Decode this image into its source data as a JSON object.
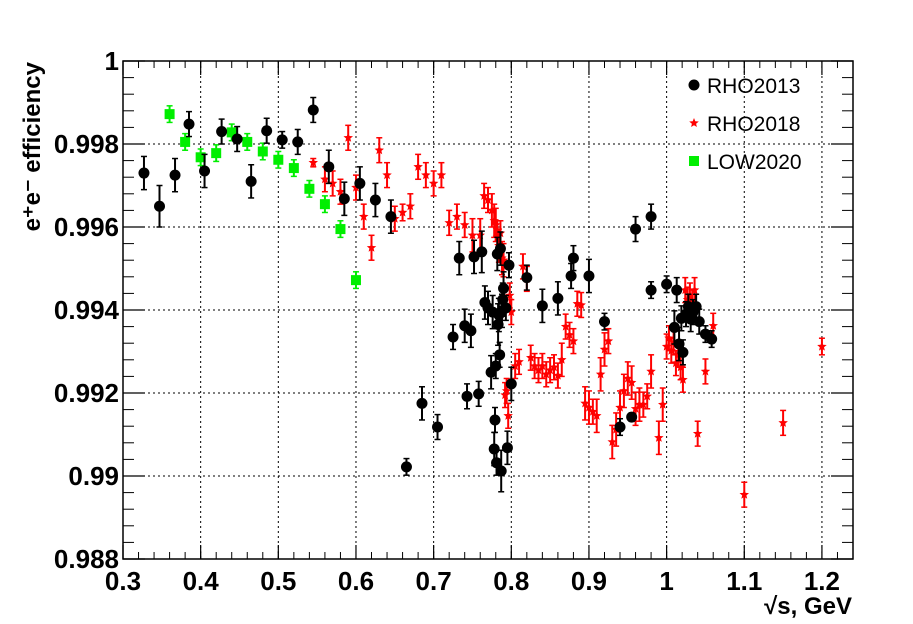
{
  "chart_data": {
    "type": "scatter",
    "xlabel": "√s, GeV",
    "ylabel": "e⁺e⁻ efficiency",
    "xlim": [
      0.3,
      1.24
    ],
    "ylim": [
      0.988,
      1.0
    ],
    "xticks": [
      "0.3",
      "0.4",
      "0.5",
      "0.6",
      "0.7",
      "0.8",
      "0.9",
      "1",
      "1.1",
      "1.2"
    ],
    "yticks": [
      "0.988",
      "0.99",
      "0.992",
      "0.994",
      "0.996",
      "0.998",
      "1"
    ],
    "grid": true,
    "legend_position": "top-right",
    "series": [
      {
        "name": "RHO2013",
        "marker": "circle",
        "color": "#000000",
        "points": [
          [
            0.327,
            0.9973,
            0.0004
          ],
          [
            0.347,
            0.9965,
            0.0005
          ],
          [
            0.367,
            0.99725,
            0.0004
          ],
          [
            0.385,
            0.99848,
            0.0003
          ],
          [
            0.405,
            0.99735,
            0.0004
          ],
          [
            0.427,
            0.9983,
            0.0003
          ],
          [
            0.447,
            0.99812,
            0.0003
          ],
          [
            0.465,
            0.9971,
            0.0004
          ],
          [
            0.485,
            0.99832,
            0.0003
          ],
          [
            0.505,
            0.9981,
            0.0002
          ],
          [
            0.525,
            0.99805,
            0.0003
          ],
          [
            0.545,
            0.99882,
            0.0003
          ],
          [
            0.565,
            0.99745,
            0.0004
          ],
          [
            0.585,
            0.99668,
            0.0004
          ],
          [
            0.605,
            0.99705,
            0.0004
          ],
          [
            0.625,
            0.99665,
            0.0004
          ],
          [
            0.645,
            0.99625,
            0.0004
          ],
          [
            0.665,
            0.99022,
            0.0002
          ],
          [
            0.685,
            0.99175,
            0.0004
          ],
          [
            0.705,
            0.99118,
            0.0003
          ],
          [
            0.725,
            0.99335,
            0.0003
          ],
          [
            0.733,
            0.99525,
            0.0004
          ],
          [
            0.74,
            0.99362,
            0.0004
          ],
          [
            0.743,
            0.99192,
            0.0003
          ],
          [
            0.748,
            0.9935,
            0.0004
          ],
          [
            0.752,
            0.99528,
            0.0004
          ],
          [
            0.758,
            0.99198,
            0.0003
          ],
          [
            0.762,
            0.9954,
            0.0005
          ],
          [
            0.766,
            0.99418,
            0.0004
          ],
          [
            0.77,
            0.99405,
            0.0004
          ],
          [
            0.774,
            0.9925,
            0.0004
          ],
          [
            0.776,
            0.99395,
            0.0004
          ],
          [
            0.778,
            0.99065,
            0.0004
          ],
          [
            0.779,
            0.99135,
            0.0003
          ],
          [
            0.78,
            0.99265,
            0.0003
          ],
          [
            0.781,
            0.99032,
            0.0003
          ],
          [
            0.782,
            0.99535,
            0.0004
          ],
          [
            0.783,
            0.99365,
            0.0005
          ],
          [
            0.784,
            0.99388,
            0.0004
          ],
          [
            0.785,
            0.99292,
            0.0003
          ],
          [
            0.786,
            0.99548,
            0.0004
          ],
          [
            0.787,
            0.99012,
            0.0005
          ],
          [
            0.788,
            0.99398,
            0.0004
          ],
          [
            0.789,
            0.99425,
            0.0004
          ],
          [
            0.79,
            0.99452,
            0.0004
          ],
          [
            0.793,
            0.99405,
            0.0003
          ],
          [
            0.795,
            0.99068,
            0.0004
          ],
          [
            0.797,
            0.99508,
            0.0003
          ],
          [
            0.8,
            0.99222,
            0.0004
          ],
          [
            0.82,
            0.99478,
            0.0003
          ],
          [
            0.84,
            0.9941,
            0.0004
          ],
          [
            0.86,
            0.99428,
            0.0004
          ],
          [
            0.877,
            0.99482,
            0.0003
          ],
          [
            0.88,
            0.99525,
            0.0003
          ],
          [
            0.9,
            0.99482,
            0.0004
          ],
          [
            0.92,
            0.99372,
            0.0002
          ],
          [
            0.94,
            0.99118,
            0.0002
          ],
          [
            0.955,
            0.99142,
            0.0001
          ],
          [
            0.96,
            0.99595,
            0.0003
          ],
          [
            0.98,
            0.99625,
            0.0003
          ],
          [
            0.98,
            0.99448,
            0.0002
          ],
          [
            1.0,
            0.99462,
            0.0002
          ],
          [
            1.01,
            0.99358,
            0.0004
          ],
          [
            1.013,
            0.99448,
            0.0003
          ],
          [
            1.016,
            0.99318,
            0.0004
          ],
          [
            1.019,
            0.9938,
            0.0003
          ],
          [
            1.021,
            0.99298,
            0.0003
          ],
          [
            1.025,
            0.9939,
            0.0003
          ],
          [
            1.028,
            0.99408,
            0.0003
          ],
          [
            1.031,
            0.99378,
            0.0003
          ],
          [
            1.034,
            0.99395,
            0.0003
          ],
          [
            1.038,
            0.99408,
            0.0003
          ],
          [
            1.042,
            0.99372,
            0.0003
          ],
          [
            1.05,
            0.99342,
            0.0002
          ],
          [
            1.058,
            0.9933,
            0.0002
          ]
        ]
      },
      {
        "name": "RHO2018",
        "marker": "star",
        "color": "#ff0000",
        "points": [
          [
            0.545,
            0.99755,
            0.0001
          ],
          [
            0.56,
            0.99715,
            0.0003
          ],
          [
            0.57,
            0.99705,
            0.0003
          ],
          [
            0.58,
            0.99685,
            0.0003
          ],
          [
            0.59,
            0.99815,
            0.0003
          ],
          [
            0.6,
            0.99695,
            0.0003
          ],
          [
            0.61,
            0.99625,
            0.0003
          ],
          [
            0.62,
            0.9955,
            0.0003
          ],
          [
            0.63,
            0.99785,
            0.0003
          ],
          [
            0.64,
            0.99725,
            0.0003
          ],
          [
            0.65,
            0.9962,
            0.0003
          ],
          [
            0.66,
            0.99635,
            0.0002
          ],
          [
            0.67,
            0.9965,
            0.0003
          ],
          [
            0.68,
            0.99745,
            0.0003
          ],
          [
            0.69,
            0.99725,
            0.0003
          ],
          [
            0.7,
            0.99705,
            0.0003
          ],
          [
            0.71,
            0.99725,
            0.0003
          ],
          [
            0.72,
            0.9961,
            0.0003
          ],
          [
            0.73,
            0.99625,
            0.0003
          ],
          [
            0.74,
            0.99605,
            0.0003
          ],
          [
            0.75,
            0.9958,
            0.0004
          ],
          [
            0.76,
            0.9958,
            0.0004
          ],
          [
            0.765,
            0.99675,
            0.0003
          ],
          [
            0.77,
            0.99665,
            0.0003
          ],
          [
            0.775,
            0.9964,
            0.0004
          ],
          [
            0.778,
            0.99615,
            0.0004
          ],
          [
            0.78,
            0.99605,
            0.0004
          ],
          [
            0.782,
            0.99575,
            0.0004
          ],
          [
            0.784,
            0.99555,
            0.0004
          ],
          [
            0.786,
            0.99585,
            0.0003
          ],
          [
            0.788,
            0.99525,
            0.0004
          ],
          [
            0.79,
            0.9952,
            0.0004
          ],
          [
            0.792,
            0.99195,
            0.0003
          ],
          [
            0.794,
            0.99205,
            0.0003
          ],
          [
            0.796,
            0.99145,
            0.0003
          ],
          [
            0.798,
            0.99435,
            0.0003
          ],
          [
            0.8,
            0.99395,
            0.0003
          ],
          [
            0.805,
            0.99265,
            0.0003
          ],
          [
            0.81,
            0.99275,
            0.0003
          ],
          [
            0.815,
            0.99505,
            0.0003
          ],
          [
            0.82,
            0.99475,
            0.0003
          ],
          [
            0.825,
            0.99285,
            0.0003
          ],
          [
            0.83,
            0.99265,
            0.0003
          ],
          [
            0.835,
            0.99255,
            0.0003
          ],
          [
            0.84,
            0.99265,
            0.0003
          ],
          [
            0.845,
            0.99245,
            0.0003
          ],
          [
            0.85,
            0.99255,
            0.0003
          ],
          [
            0.855,
            0.99262,
            0.0003
          ],
          [
            0.86,
            0.99242,
            0.0003
          ],
          [
            0.865,
            0.9928,
            0.0004
          ],
          [
            0.87,
            0.9936,
            0.0003
          ],
          [
            0.875,
            0.9934,
            0.0003
          ],
          [
            0.88,
            0.99325,
            0.0003
          ],
          [
            0.885,
            0.99415,
            0.0003
          ],
          [
            0.89,
            0.99412,
            0.0003
          ],
          [
            0.895,
            0.99175,
            0.0004
          ],
          [
            0.9,
            0.99165,
            0.0004
          ],
          [
            0.905,
            0.99155,
            0.0003
          ],
          [
            0.91,
            0.99145,
            0.0004
          ],
          [
            0.915,
            0.99245,
            0.0004
          ],
          [
            0.92,
            0.99305,
            0.0004
          ],
          [
            0.925,
            0.99325,
            0.0003
          ],
          [
            0.93,
            0.99082,
            0.0004
          ],
          [
            0.935,
            0.99112,
            0.0004
          ],
          [
            0.94,
            0.99165,
            0.0004
          ],
          [
            0.945,
            0.99205,
            0.0004
          ],
          [
            0.95,
            0.99235,
            0.0004
          ],
          [
            0.955,
            0.99225,
            0.0004
          ],
          [
            0.96,
            0.99162,
            0.0004
          ],
          [
            0.965,
            0.99172,
            0.0004
          ],
          [
            0.97,
            0.99172,
            0.0003
          ],
          [
            0.975,
            0.99192,
            0.0003
          ],
          [
            0.98,
            0.99252,
            0.0004
          ],
          [
            0.99,
            0.99092,
            0.0004
          ],
          [
            0.995,
            0.99172,
            0.0004
          ],
          [
            1.0,
            0.99312,
            0.0003
          ],
          [
            1.003,
            0.99332,
            0.0003
          ],
          [
            1.006,
            0.99302,
            0.0003
          ],
          [
            1.009,
            0.99322,
            0.0003
          ],
          [
            1.012,
            0.99272,
            0.0003
          ],
          [
            1.015,
            0.99292,
            0.0003
          ],
          [
            1.018,
            0.99262,
            0.0003
          ],
          [
            1.021,
            0.99232,
            0.0003
          ],
          [
            1.024,
            0.99448,
            0.0003
          ],
          [
            1.027,
            0.99425,
            0.0003
          ],
          [
            1.03,
            0.99435,
            0.0003
          ],
          [
            1.033,
            0.99418,
            0.0003
          ],
          [
            1.036,
            0.99448,
            0.0003
          ],
          [
            1.04,
            0.99102,
            0.0003
          ],
          [
            1.05,
            0.99252,
            0.0003
          ],
          [
            1.06,
            0.99362,
            0.0003
          ],
          [
            1.1,
            0.98955,
            0.0003
          ],
          [
            1.15,
            0.99128,
            0.0003
          ],
          [
            1.2,
            0.99312,
            0.0002
          ]
        ]
      },
      {
        "name": "LOW2020",
        "marker": "square",
        "color": "#00ee00",
        "points": [
          [
            0.36,
            0.99872,
            0.0002
          ],
          [
            0.38,
            0.99805,
            0.0002
          ],
          [
            0.4,
            0.99768,
            0.0002
          ],
          [
            0.42,
            0.99778,
            0.0002
          ],
          [
            0.44,
            0.99828,
            0.0002
          ],
          [
            0.46,
            0.99805,
            0.0002
          ],
          [
            0.48,
            0.99782,
            0.0002
          ],
          [
            0.5,
            0.99762,
            0.0002
          ],
          [
            0.52,
            0.99742,
            0.0002
          ],
          [
            0.54,
            0.99692,
            0.0002
          ],
          [
            0.56,
            0.99655,
            0.0002
          ],
          [
            0.58,
            0.99595,
            0.0002
          ],
          [
            0.6,
            0.99472,
            0.0002
          ]
        ]
      }
    ]
  }
}
